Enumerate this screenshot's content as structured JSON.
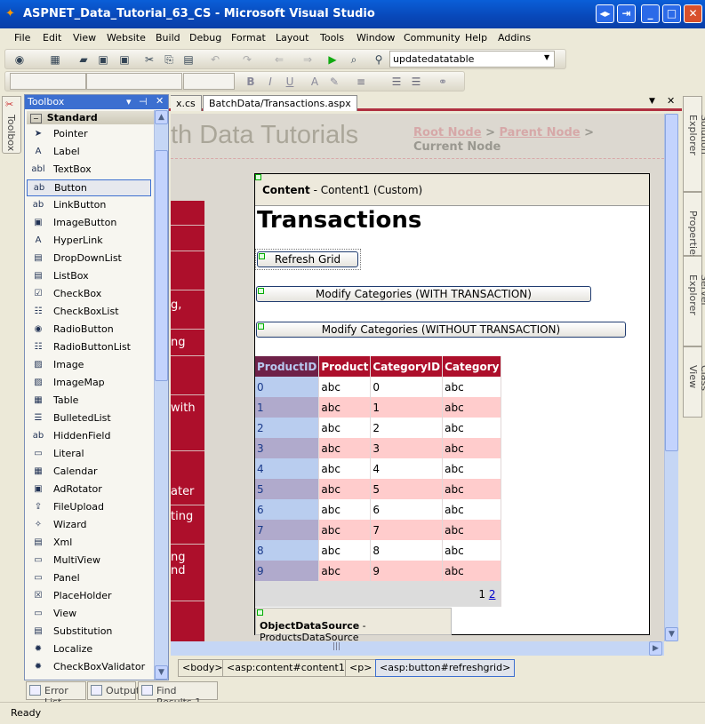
{
  "window": {
    "title": "ASPNET_Data_Tutorial_63_CS - Microsoft Visual Studio"
  },
  "menu": [
    "File",
    "Edit",
    "View",
    "Website",
    "Build",
    "Debug",
    "Format",
    "Layout",
    "Tools",
    "Window",
    "Community",
    "Help",
    "Addins"
  ],
  "toolbar": {
    "find_combo": "updatedatatable"
  },
  "toolbox": {
    "title": "Toolbox",
    "tab_label": "Toolbox",
    "group": "Standard",
    "selected": "Button",
    "items": [
      {
        "label": "Pointer",
        "icon": "pointer-icon",
        "glyph": "➤"
      },
      {
        "label": "Label",
        "icon": "label-icon",
        "glyph": "A"
      },
      {
        "label": "TextBox",
        "icon": "textbox-icon",
        "glyph": "abl"
      },
      {
        "label": "Button",
        "icon": "button-icon",
        "glyph": "ab"
      },
      {
        "label": "LinkButton",
        "icon": "linkbutton-icon",
        "glyph": "ab"
      },
      {
        "label": "ImageButton",
        "icon": "imagebutton-icon",
        "glyph": "▣"
      },
      {
        "label": "HyperLink",
        "icon": "hyperlink-icon",
        "glyph": "A"
      },
      {
        "label": "DropDownList",
        "icon": "dropdownlist-icon",
        "glyph": "▤"
      },
      {
        "label": "ListBox",
        "icon": "listbox-icon",
        "glyph": "▤"
      },
      {
        "label": "CheckBox",
        "icon": "checkbox-icon",
        "glyph": "☑"
      },
      {
        "label": "CheckBoxList",
        "icon": "checkboxlist-icon",
        "glyph": "☷"
      },
      {
        "label": "RadioButton",
        "icon": "radiobutton-icon",
        "glyph": "◉"
      },
      {
        "label": "RadioButtonList",
        "icon": "radiobuttonlist-icon",
        "glyph": "☷"
      },
      {
        "label": "Image",
        "icon": "image-icon",
        "glyph": "▨"
      },
      {
        "label": "ImageMap",
        "icon": "imagemap-icon",
        "glyph": "▨"
      },
      {
        "label": "Table",
        "icon": "table-icon",
        "glyph": "▦"
      },
      {
        "label": "BulletedList",
        "icon": "bulletedlist-icon",
        "glyph": "☰"
      },
      {
        "label": "HiddenField",
        "icon": "hiddenfield-icon",
        "glyph": "ab"
      },
      {
        "label": "Literal",
        "icon": "literal-icon",
        "glyph": "▭"
      },
      {
        "label": "Calendar",
        "icon": "calendar-icon",
        "glyph": "▦"
      },
      {
        "label": "AdRotator",
        "icon": "adrotator-icon",
        "glyph": "▣"
      },
      {
        "label": "FileUpload",
        "icon": "fileupload-icon",
        "glyph": "⇪"
      },
      {
        "label": "Wizard",
        "icon": "wizard-icon",
        "glyph": "✧"
      },
      {
        "label": "Xml",
        "icon": "xml-icon",
        "glyph": "▤"
      },
      {
        "label": "MultiView",
        "icon": "multiview-icon",
        "glyph": "▭"
      },
      {
        "label": "Panel",
        "icon": "panel-icon",
        "glyph": "▭"
      },
      {
        "label": "PlaceHolder",
        "icon": "placeholder-icon",
        "glyph": "☒"
      },
      {
        "label": "View",
        "icon": "view-icon",
        "glyph": "▭"
      },
      {
        "label": "Substitution",
        "icon": "substitution-icon",
        "glyph": "▤"
      },
      {
        "label": "Localize",
        "icon": "localize-icon",
        "glyph": "✹"
      },
      {
        "label": "CheckBoxValidator",
        "icon": "checkboxvalidator-icon",
        "glyph": "✹"
      }
    ]
  },
  "doc_tabs": [
    {
      "label": "x.cs",
      "active": false
    },
    {
      "label": "BatchData/Transactions.aspx",
      "active": true
    }
  ],
  "right_panels": [
    "Solution Explorer",
    "Properties",
    "Server Explorer",
    "Class View"
  ],
  "designer": {
    "site_title": "th Data Tutorials",
    "breadcrumb": {
      "root": "Root Node",
      "sep": " > ",
      "parent": "Parent Node",
      "current": "Current Node"
    },
    "menu_fragments": [
      "g,",
      "ng",
      "with",
      "ater",
      "ting",
      "ng\nnd"
    ],
    "content_label": "Content",
    "content_desc": " - Content1 (Custom)",
    "heading": "Transactions",
    "buttons": [
      "Refresh Grid",
      "Modify Categories (WITH TRANSACTION)",
      "Modify Categories (WITHOUT TRANSACTION)"
    ],
    "grid": {
      "columns": [
        "ProductID",
        "Product",
        "CategoryID",
        "Category"
      ],
      "rows": [
        [
          "0",
          "abc",
          "0",
          "abc"
        ],
        [
          "1",
          "abc",
          "1",
          "abc"
        ],
        [
          "2",
          "abc",
          "2",
          "abc"
        ],
        [
          "3",
          "abc",
          "3",
          "abc"
        ],
        [
          "4",
          "abc",
          "4",
          "abc"
        ],
        [
          "5",
          "abc",
          "5",
          "abc"
        ],
        [
          "6",
          "abc",
          "6",
          "abc"
        ],
        [
          "7",
          "abc",
          "7",
          "abc"
        ],
        [
          "8",
          "abc",
          "8",
          "abc"
        ],
        [
          "9",
          "abc",
          "9",
          "abc"
        ]
      ],
      "pager": {
        "current": "1",
        "link": "2"
      },
      "colors": {
        "header": "#ad0f2b",
        "alt_row": "#ffcccc",
        "id_col": "#b9cdef",
        "id_col_alt": "#b0aacc"
      }
    },
    "datasource_label": "ObjectDataSource",
    "datasource_desc": " - ProductsDataSource"
  },
  "tag_path": [
    "<body>",
    "<asp:content#content1>",
    "<p>",
    "<asp:button#refreshgrid>"
  ],
  "bottom_tabs": [
    "Error List",
    "Output",
    "Find Results 1"
  ],
  "status": "Ready"
}
